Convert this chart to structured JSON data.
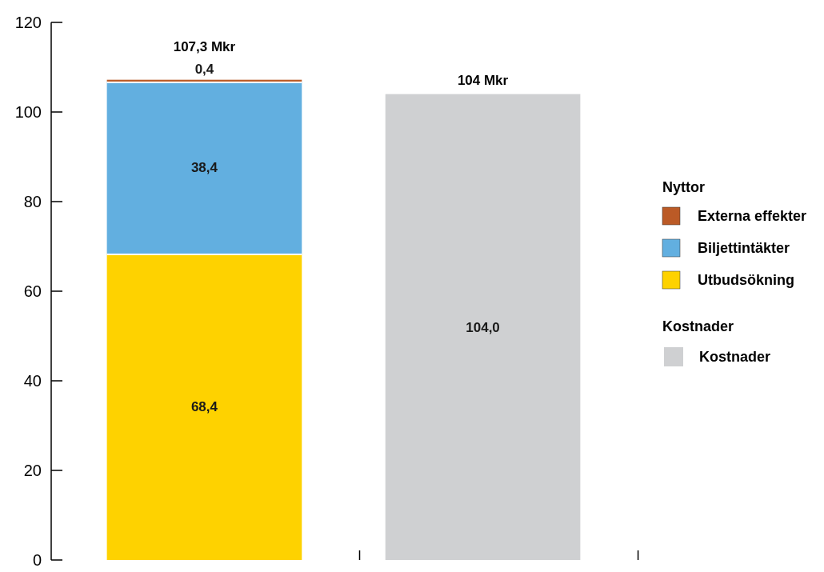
{
  "chart_data": {
    "type": "bar",
    "stacked": true,
    "categories": [
      null,
      null
    ],
    "series": [
      {
        "name": "Utbudsökning",
        "color": "#fed200",
        "values": [
          68.4,
          null
        ],
        "value_labels": [
          "68,4",
          null
        ]
      },
      {
        "name": "Biljettintäkter",
        "color": "#62afe0",
        "values": [
          38.4,
          null
        ],
        "value_labels": [
          "38,4",
          null
        ]
      },
      {
        "name": "Externa effekter",
        "color": "#bb5a26",
        "values": [
          0.4,
          null
        ],
        "value_labels": [
          "0,4",
          null
        ]
      },
      {
        "name": "Kostnader",
        "color": "#cfd0d2",
        "values": [
          null,
          104.0
        ],
        "value_labels": [
          null,
          "104,0"
        ]
      }
    ],
    "totals": [
      "107,3 Mkr",
      "104 Mkr"
    ],
    "legend_title": "Nyttor",
    "annotations": [
      "Kostnader"
    ],
    "ylim": [
      0,
      120
    ],
    "yticks": [
      0,
      20,
      40,
      60,
      80,
      100,
      120
    ],
    "grid": false,
    "legend": "right"
  }
}
